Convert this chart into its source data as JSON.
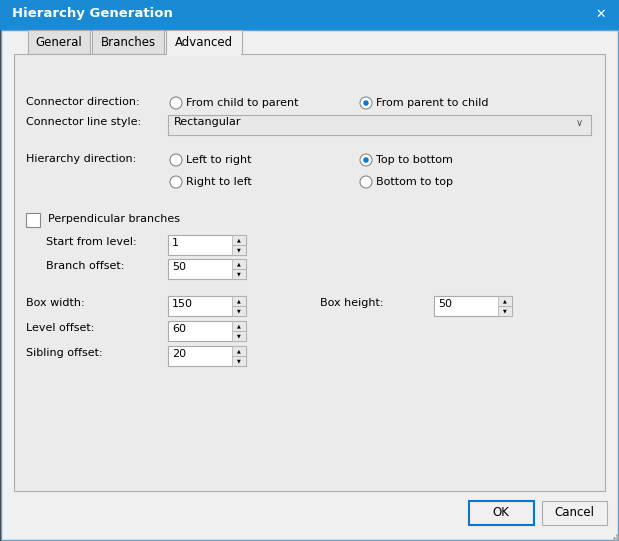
{
  "title": "Hierarchy Generation",
  "title_bar_color": "#1a8ad4",
  "title_text_color": "#ffffff",
  "outer_bg": "#000000",
  "dialog_bg": "#f0f0f0",
  "content_bg": "#ebebeb",
  "tab_inactive_bg": "#e0e0e0",
  "border_color": "#adadad",
  "text_color": "#000000",
  "input_bg": "#ffffff",
  "input_border": "#aaaaaa",
  "button_bg": "#f0f0f0",
  "button_highlight_border": "#0078d7",
  "button_normal_border": "#adadad",
  "selected_radio_color": "#0078d7",
  "dropdown_bg": "#e8e8e8",
  "labels": {
    "connector_direction": "Connector direction:",
    "connector_line_style": "Connector line style:",
    "hierarchy_direction": "Hierarchy direction:",
    "perpendicular_branches": "Perpendicular branches",
    "start_from_level": "Start from level:",
    "branch_offset": "Branch offset:",
    "box_width": "Box width:",
    "box_height": "Box height:",
    "level_offset": "Level offset:",
    "sibling_offset": "Sibling offset:"
  },
  "dropdown_text": "Rectangular",
  "tab_names": [
    "General",
    "Branches",
    "Advanced"
  ],
  "active_tab": 2
}
